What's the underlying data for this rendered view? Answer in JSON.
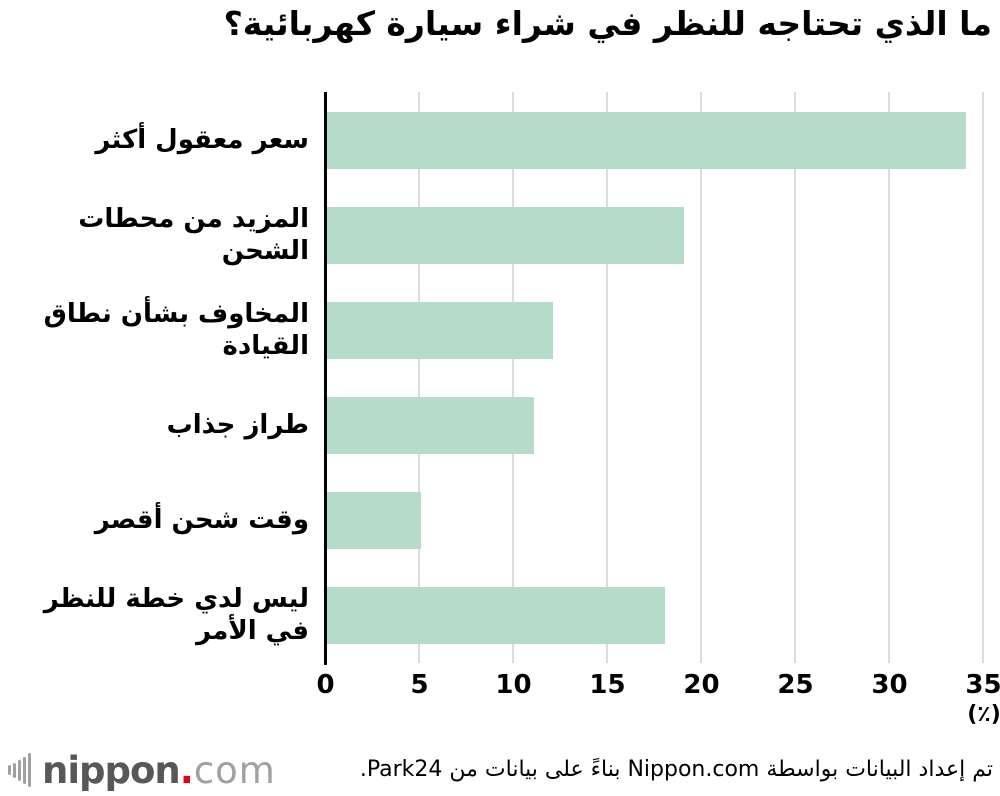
{
  "chart_data": {
    "type": "bar",
    "orientation": "horizontal",
    "title": "ما الذي تحتاجه للنظر في شراء سيارة كهربائية؟",
    "categories": [
      "سعر معقول أكثر",
      "المزيد من محطات الشحن",
      "المخاوف بشأن نطاق القيادة",
      "طراز جذاب",
      "وقت شحن أقصر",
      "ليس لدي خطة للنظر في الأمر"
    ],
    "values": [
      34,
      19,
      12,
      11,
      5,
      18
    ],
    "xlabel": "(٪)",
    "xlim": [
      0,
      35
    ],
    "xticks": [
      0,
      5,
      10,
      15,
      20,
      25,
      30,
      35
    ],
    "grid": true,
    "legend": "none"
  },
  "colors": {
    "bar": "#b5dcc9",
    "gridline": "#dcdcdc",
    "axis": "#000000",
    "logo_text_dark": "#595757",
    "logo_text_light": "#9fa0a0",
    "logo_dot_red": "#e60012"
  },
  "footer": {
    "logo_main": "nippon",
    "logo_dot": ".",
    "logo_suffix": "com",
    "attribution": "تم إعداد البيانات بواسطة Nippon.com بناءً على بيانات من Park24."
  }
}
